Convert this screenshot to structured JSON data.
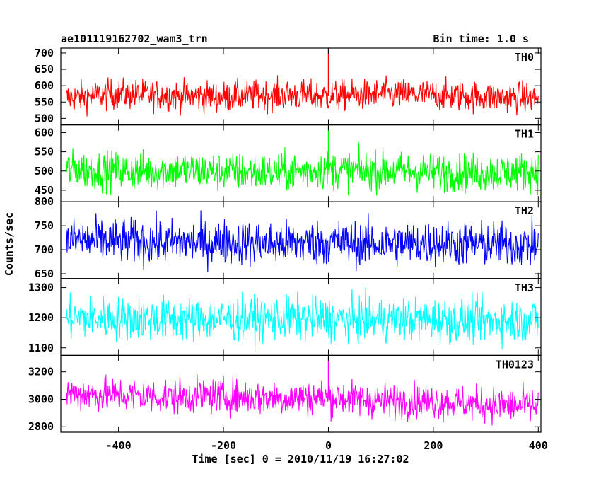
{
  "header": {
    "title": "ae101119162702_wam3_trn",
    "bin_time": "Bin time: 1.0 s"
  },
  "axes": {
    "ylabel": "Counts/sec",
    "xlabel": "Time [sec] 0 = 2010/11/19 16:27:02"
  },
  "chart_data": {
    "type": "line",
    "x_range": [
      -510,
      405
    ],
    "x_ticks": [
      -400,
      -200,
      0,
      200,
      400
    ],
    "bin_time_s": 1.0,
    "series_color_hex": [
      "#ff0000",
      "#00ff00",
      "#0000ff",
      "#00ffff",
      "#ff00ff"
    ],
    "panels": [
      {
        "name": "TH0",
        "color": "#ff0000",
        "ylim": [
          480,
          715
        ],
        "y_ticks": [
          500,
          550,
          600,
          650,
          700
        ],
        "baseline": 568,
        "noise_amplitude": 42,
        "spike": {
          "x": 0,
          "y": 715
        },
        "x": [
          -500,
          -400,
          -300,
          -200,
          -100,
          0,
          100,
          200,
          300,
          400
        ],
        "values": [
          562,
          575,
          570,
          566,
          572,
          568,
          574,
          572,
          565,
          563
        ]
      },
      {
        "name": "TH1",
        "color": "#00ff00",
        "ylim": [
          420,
          620
        ],
        "y_ticks": [
          450,
          500,
          550,
          600
        ],
        "baseline": 500,
        "noise_amplitude": 45,
        "spike": {
          "x": 0,
          "y": 620
        },
        "x": [
          -500,
          -400,
          -300,
          -200,
          -100,
          0,
          100,
          200,
          300,
          400
        ],
        "values": [
          505,
          500,
          502,
          498,
          496,
          503,
          500,
          497,
          495,
          500
        ]
      },
      {
        "name": "TH2",
        "color": "#0000ff",
        "ylim": [
          640,
          800
        ],
        "y_ticks": [
          650,
          700,
          750,
          800
        ],
        "baseline": 715,
        "noise_amplitude": 42,
        "spike": null,
        "x": [
          -500,
          -400,
          -300,
          -200,
          -100,
          0,
          100,
          200,
          300,
          400
        ],
        "values": [
          720,
          718,
          715,
          717,
          712,
          716,
          712,
          714,
          711,
          710
        ]
      },
      {
        "name": "TH3",
        "color": "#00ffff",
        "ylim": [
          1075,
          1330
        ],
        "y_ticks": [
          1100,
          1200,
          1300
        ],
        "baseline": 1195,
        "noise_amplitude": 65,
        "spike": null,
        "x": [
          -500,
          -400,
          -300,
          -200,
          -100,
          0,
          100,
          200,
          300,
          400
        ],
        "values": [
          1200,
          1198,
          1195,
          1196,
          1197,
          1195,
          1192,
          1194,
          1190,
          1192
        ]
      },
      {
        "name": "TH0123",
        "color": "#ff00ff",
        "ylim": [
          2760,
          3320
        ],
        "y_ticks": [
          2800,
          3000,
          3200
        ],
        "baseline": 3010,
        "noise_amplitude": 115,
        "spike": {
          "x": 0,
          "y": 3320
        },
        "x": [
          -500,
          -400,
          -300,
          -200,
          -100,
          0,
          100,
          200,
          300,
          400
        ],
        "values": [
          3040,
          3030,
          3020,
          3025,
          3010,
          3015,
          2990,
          2985,
          2960,
          2950
        ]
      }
    ]
  }
}
